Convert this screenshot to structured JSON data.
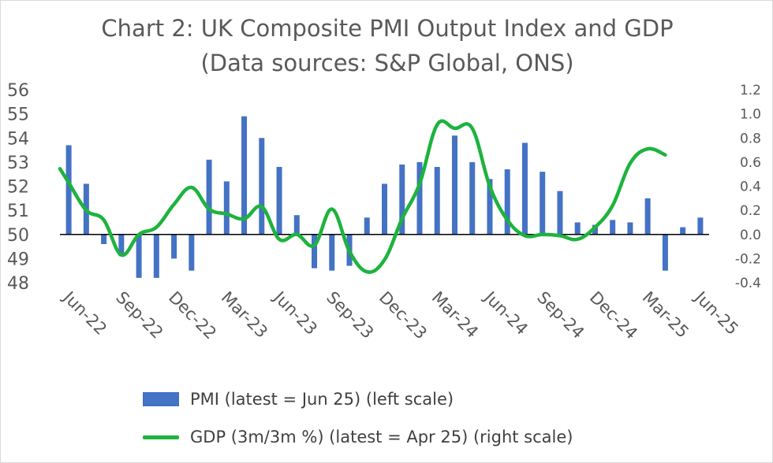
{
  "chart_data": {
    "type": "bar+line",
    "title": "Chart 2: UK Composite PMI Output Index and GDP",
    "subtitle": "(Data sources: S&P Global, ONS)",
    "x": [
      "Jun-22",
      "Jul-22",
      "Aug-22",
      "Sep-22",
      "Oct-22",
      "Nov-22",
      "Dec-22",
      "Jan-23",
      "Feb-23",
      "Mar-23",
      "Apr-23",
      "May-23",
      "Jun-23",
      "Jul-23",
      "Aug-23",
      "Sep-23",
      "Oct-23",
      "Nov-23",
      "Dec-23",
      "Jan-24",
      "Feb-24",
      "Mar-24",
      "Apr-24",
      "May-24",
      "Jun-24",
      "Jul-24",
      "Aug-24",
      "Sep-24",
      "Oct-24",
      "Nov-24",
      "Dec-24",
      "Jan-25",
      "Feb-25",
      "Mar-25",
      "Apr-25",
      "May-25",
      "Jun-25"
    ],
    "tick_labels": [
      "Jun-22",
      "Sep-22",
      "Dec-22",
      "Mar-23",
      "Jun-23",
      "Sep-23",
      "Dec-23",
      "Mar-24",
      "Jun-24",
      "Sep-24",
      "Dec-24",
      "Mar-25",
      "Jun-25"
    ],
    "left_axis": {
      "min": 48,
      "max": 56,
      "step": 1,
      "baseline": 50,
      "ticks": [
        "56",
        "55",
        "54",
        "53",
        "52",
        "51",
        "50",
        "49",
        "48"
      ]
    },
    "right_axis": {
      "min": -0.4,
      "max": 1.2,
      "step": 0.2,
      "ticks": [
        "1.2",
        "1.0",
        "0.8",
        "0.6",
        "0.4",
        "0.2",
        "0.0",
        "-0.2",
        "-0.4"
      ]
    },
    "series": [
      {
        "name": "PMI (latest = Jun 25) (left scale)",
        "type": "bar",
        "axis": "left",
        "color": "#4472c4",
        "values": [
          53.7,
          52.1,
          49.6,
          49.1,
          48.2,
          48.2,
          49.0,
          48.5,
          53.1,
          52.2,
          54.9,
          54.0,
          52.8,
          50.8,
          48.6,
          48.5,
          48.7,
          50.7,
          52.1,
          52.9,
          53.0,
          52.8,
          54.1,
          53.0,
          52.3,
          52.7,
          53.8,
          52.6,
          51.8,
          50.5,
          50.4,
          50.6,
          50.5,
          51.5,
          48.5,
          50.3,
          50.7
        ]
      },
      {
        "name": "GDP (3m/3m %) (latest = Apr 25) (right scale)",
        "type": "line",
        "axis": "right",
        "color": "#1db33d",
        "values": [
          0.43,
          0.2,
          0.12,
          -0.17,
          0.0,
          0.06,
          0.25,
          0.39,
          0.21,
          0.17,
          0.13,
          0.23,
          -0.04,
          0.0,
          -0.09,
          0.21,
          -0.14,
          -0.31,
          -0.21,
          0.13,
          0.42,
          0.91,
          0.88,
          0.88,
          0.4,
          0.12,
          -0.01,
          0.0,
          -0.01,
          -0.04,
          0.06,
          0.24,
          0.59,
          0.71,
          0.66,
          null,
          null
        ]
      }
    ]
  }
}
